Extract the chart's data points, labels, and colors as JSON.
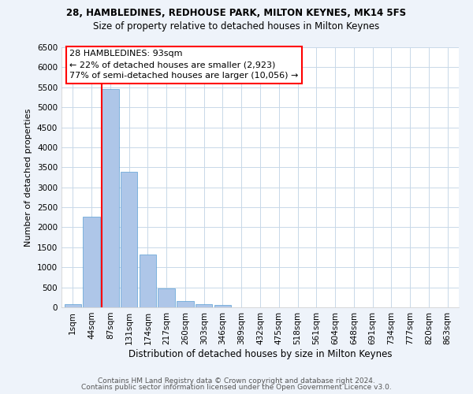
{
  "title1": "28, HAMBLEDINES, REDHOUSE PARK, MILTON KEYNES, MK14 5FS",
  "title2": "Size of property relative to detached houses in Milton Keynes",
  "xlabel": "Distribution of detached houses by size in Milton Keynes",
  "ylabel": "Number of detached properties",
  "footer1": "Contains HM Land Registry data © Crown copyright and database right 2024.",
  "footer2": "Contains public sector information licensed under the Open Government Licence v3.0.",
  "bar_labels": [
    "1sqm",
    "44sqm",
    "87sqm",
    "131sqm",
    "174sqm",
    "217sqm",
    "260sqm",
    "303sqm",
    "346sqm",
    "389sqm",
    "432sqm",
    "475sqm",
    "518sqm",
    "561sqm",
    "604sqm",
    "648sqm",
    "691sqm",
    "734sqm",
    "777sqm",
    "820sqm",
    "863sqm"
  ],
  "bar_values": [
    70,
    2270,
    5460,
    3380,
    1310,
    480,
    160,
    80,
    60,
    0,
    0,
    0,
    0,
    0,
    0,
    0,
    0,
    0,
    0,
    0,
    0
  ],
  "bar_color": "#aec6e8",
  "bar_edge_color": "#5a9fd4",
  "grid_color": "#c8d8e8",
  "axes_bg_color": "#ffffff",
  "fig_bg_color": "#eef3fa",
  "annotation_box_text": "28 HAMBLEDINES: 93sqm\n← 22% of detached houses are smaller (2,923)\n77% of semi-detached houses are larger (10,056) →",
  "redline_bar_index": 2,
  "ylim": [
    0,
    6500
  ],
  "yticks": [
    0,
    500,
    1000,
    1500,
    2000,
    2500,
    3000,
    3500,
    4000,
    4500,
    5000,
    5500,
    6000,
    6500
  ],
  "title1_fontsize": 8.5,
  "title2_fontsize": 8.5,
  "xlabel_fontsize": 8.5,
  "ylabel_fontsize": 8.0,
  "tick_fontsize": 7.5,
  "footer_fontsize": 6.5
}
